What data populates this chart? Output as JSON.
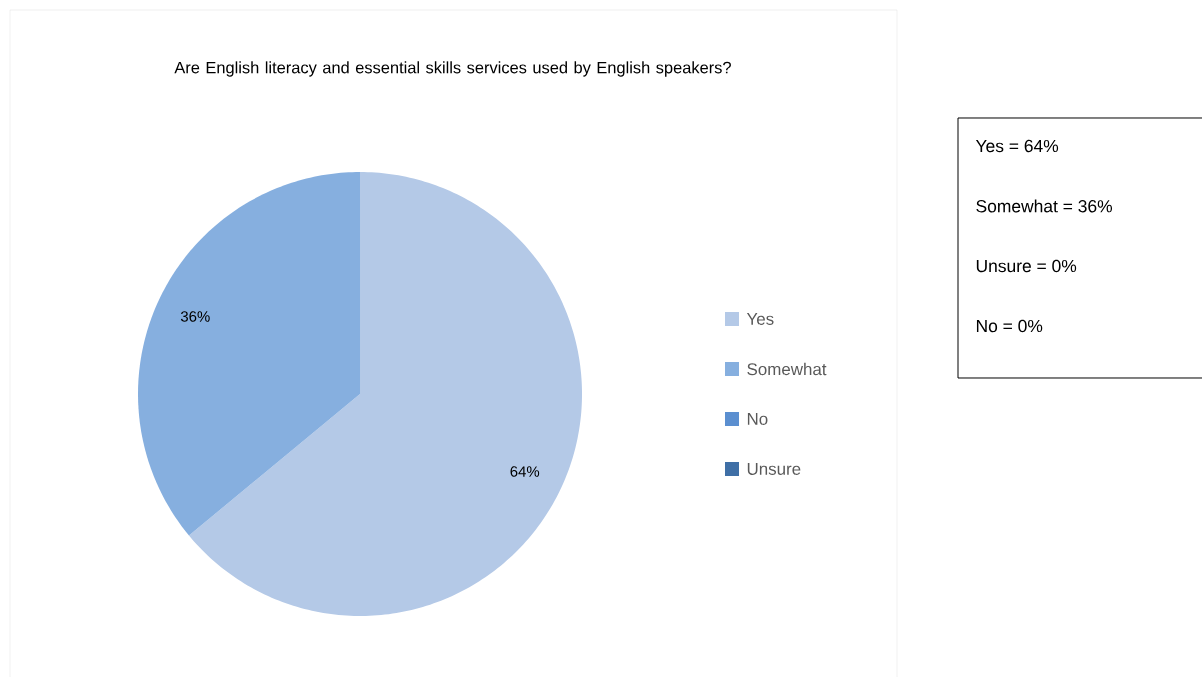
{
  "chart_data": {
    "type": "pie",
    "title": "Are English literacy and essential skills services used by English speakers?",
    "categories": [
      "Yes",
      "Somewhat",
      "No",
      "Unsure"
    ],
    "values": [
      64,
      36,
      0,
      0
    ],
    "colors": [
      "#b4c9e7",
      "#86afdf",
      "#5b8fd0",
      "#3f6fa6"
    ],
    "value_labels": [
      "64%",
      "36%",
      null,
      null
    ],
    "legend": "right",
    "annotations": [
      "Yes = 64%",
      "Somewhat = 36%",
      "Unsure = 0%",
      "No = 0%"
    ]
  }
}
